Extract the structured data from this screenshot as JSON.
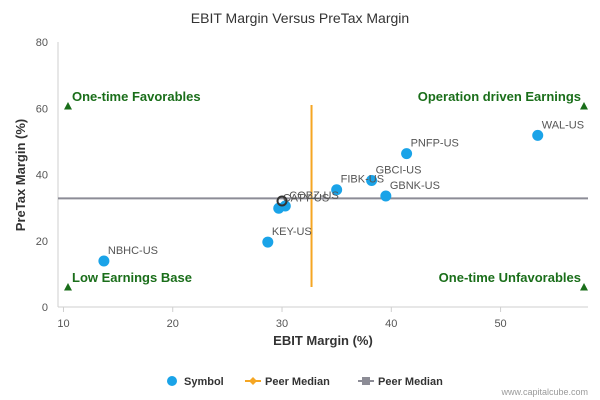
{
  "chart_data": {
    "type": "scatter",
    "title": "EBIT Margin Versus PreTax Margin",
    "xlabel": "EBIT Margin (%)",
    "ylabel": "PreTax Margin (%)",
    "xlim": [
      9.5,
      58
    ],
    "ylim": [
      0,
      80
    ],
    "xticks": [
      "10",
      "20",
      "30",
      "40",
      "50"
    ],
    "yticks": [
      "0",
      "20",
      "40",
      "60",
      "80"
    ],
    "grid": false,
    "legend_position": "bottom",
    "points": [
      {
        "label": "WAL-US",
        "x": 53.4,
        "y": 51.8
      },
      {
        "label": "PNFP-US",
        "x": 41.4,
        "y": 46.3
      },
      {
        "label": "GBCI-US",
        "x": 38.2,
        "y": 38.2
      },
      {
        "label": "FIBK-US",
        "x": 35.0,
        "y": 35.4
      },
      {
        "label": "GBNK-US",
        "x": 39.5,
        "y": 33.5
      },
      {
        "label": "COBZ-US",
        "x": 30.3,
        "y": 30.5
      },
      {
        "label": "CATY-US",
        "x": 29.7,
        "y": 29.8
      },
      {
        "label": "KEY-US",
        "x": 28.7,
        "y": 19.6
      },
      {
        "label": "NBHC-US",
        "x": 13.7,
        "y": 13.9
      }
    ],
    "subject_point": {
      "x": 30.0,
      "y": 32.0
    },
    "peer_median_x": 32.7,
    "peer_median_y": 32.8,
    "quadrants": {
      "top_left": "One-time Favorables",
      "top_right": "Operation driven Earnings",
      "bottom_left": "Low Earnings Base",
      "bottom_right": "One-time Unfavorables"
    },
    "legend": [
      {
        "label": "Symbol",
        "color": "#1aa3e8",
        "marker": "circle"
      },
      {
        "label": "Peer Median",
        "color": "#f5a623",
        "marker": "diamond"
      },
      {
        "label": "Peer Median",
        "color": "#8c8c96",
        "marker": "square"
      }
    ],
    "colors": {
      "point": "#1aa3e8",
      "peer_median_x_line": "#f5a623",
      "peer_median_y_line": "#8c8c96",
      "quadrant_text": "#1a6e1a",
      "quadrant_marker": "#1a6e1a"
    }
  },
  "watermark": "www.capitalcube.com"
}
